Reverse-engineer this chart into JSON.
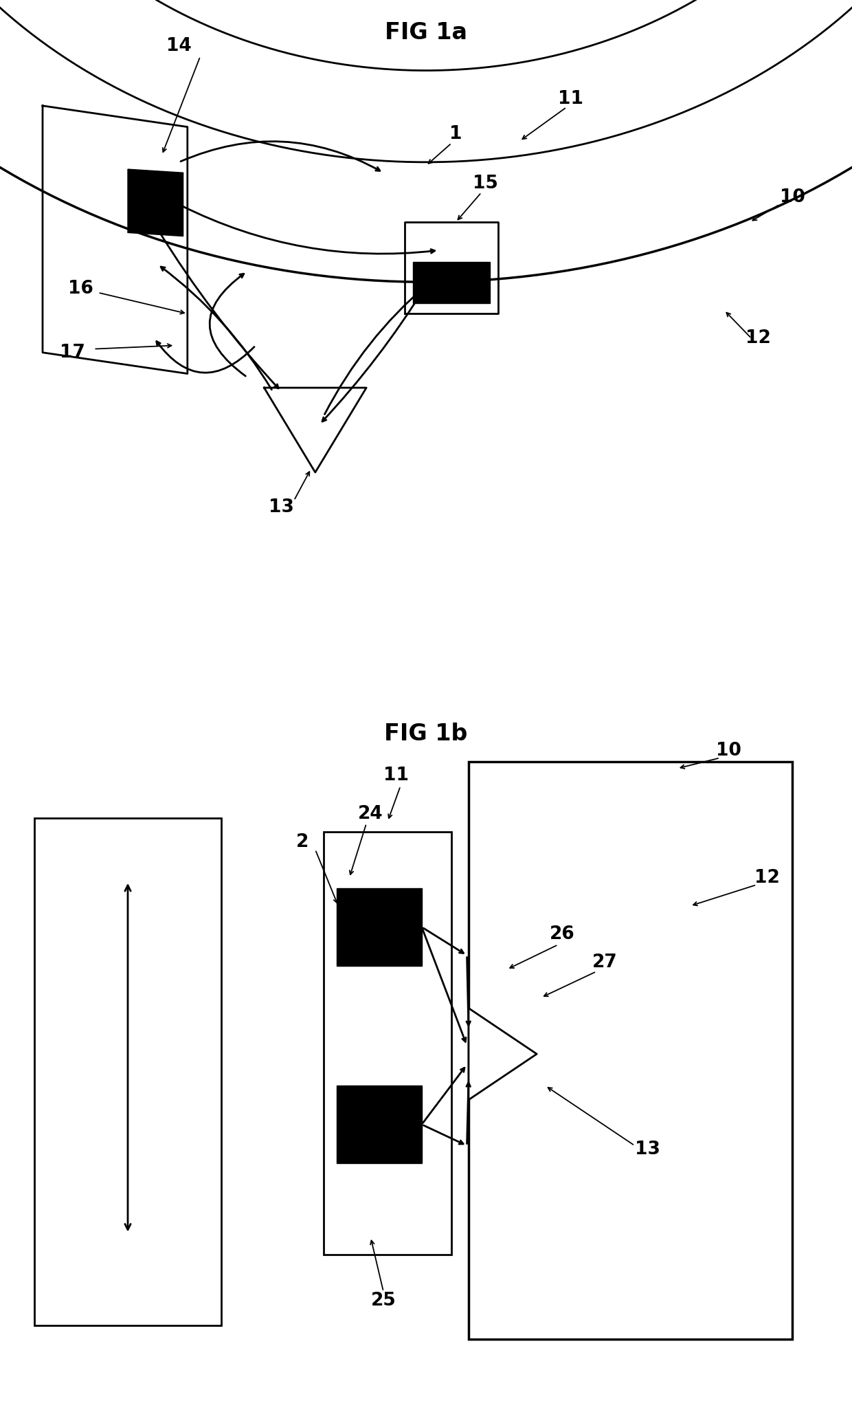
{
  "fig_title_1a": "FIG 1a",
  "fig_title_1b": "FIG 1b",
  "title_fontsize": 24,
  "label_fontsize": 19,
  "bg_color": "#ffffff",
  "line_color": "#000000"
}
